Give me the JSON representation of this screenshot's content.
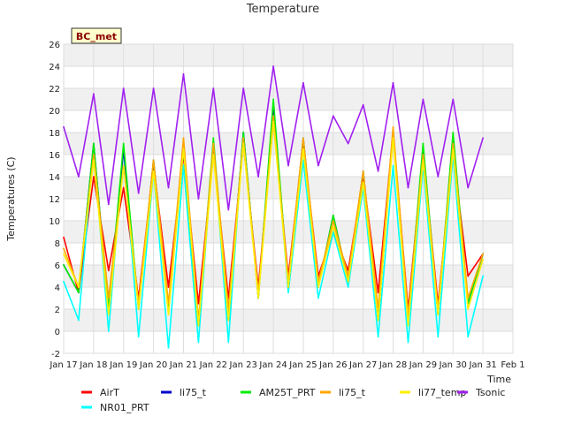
{
  "chart_data": {
    "type": "line",
    "title": "Temperature",
    "xlabel": "Time",
    "ylabel": "Temperatures (C)",
    "badge": "BC_met",
    "ylim": [
      -2,
      26
    ],
    "yticks": [
      -2,
      0,
      2,
      4,
      6,
      8,
      10,
      12,
      14,
      16,
      18,
      20,
      22,
      24,
      26
    ],
    "xlim": [
      17,
      32
    ],
    "xticks": [
      17,
      18,
      19,
      20,
      21,
      22,
      23,
      24,
      25,
      26,
      27,
      28,
      29,
      30,
      31,
      32
    ],
    "xticklabels": [
      "Jan 17",
      "Jan 18",
      "Jan 19",
      "Jan 20",
      "Jan 21",
      "Jan 22",
      "Jan 23",
      "Jan 24",
      "Jan 25",
      "Jan 26",
      "Jan 27",
      "Jan 28",
      "Jan 29",
      "Jan 30",
      "Jan 31",
      "Feb 1"
    ],
    "grid": true,
    "legend_position": "bottom",
    "x": [
      17.0,
      17.5,
      18.0,
      18.5,
      19.0,
      19.5,
      20.0,
      20.5,
      21.0,
      21.5,
      22.0,
      22.5,
      23.0,
      23.5,
      24.0,
      24.5,
      25.0,
      25.5,
      26.0,
      26.5,
      27.0,
      27.5,
      28.0,
      28.5,
      29.0,
      29.5,
      30.0,
      30.5,
      31.0
    ],
    "series": [
      {
        "name": "AirT",
        "color": "#ff0000",
        "values": [
          8.5,
          3.5,
          14,
          5.5,
          13,
          3,
          15,
          4,
          16,
          2.5,
          16,
          3,
          17,
          4,
          19,
          5,
          17,
          5,
          9,
          5.5,
          14,
          3.5,
          18,
          2,
          16,
          2.5,
          16,
          5,
          7
        ]
      },
      {
        "name": "NR01_PRT",
        "color": "#00ffff",
        "values": [
          4.5,
          1,
          16.5,
          0,
          16.5,
          -0.5,
          14.5,
          -1.5,
          15,
          -1,
          17,
          -1,
          18,
          3,
          20,
          3.5,
          15.5,
          3,
          9,
          4,
          13,
          -0.5,
          15,
          -1,
          15,
          -0.5,
          16,
          -0.5,
          5
        ]
      },
      {
        "name": "li75_t",
        "color": "#0000cc",
        "values": [
          6,
          3.5,
          17,
          2,
          16.5,
          2,
          15.5,
          2,
          16.5,
          0.5,
          17,
          1,
          18,
          3,
          20.5,
          4,
          17.5,
          4,
          10.5,
          4.5,
          14.5,
          1,
          18,
          1,
          16.5,
          1.5,
          17.5,
          2.5,
          7
        ]
      },
      {
        "name": "AM25T_PRT",
        "color": "#00ee00",
        "values": [
          6,
          3.5,
          17,
          2,
          17,
          2,
          15.5,
          2,
          16.5,
          0.5,
          17.5,
          1,
          18,
          3,
          21,
          4,
          17.5,
          4,
          10.5,
          4.5,
          14.5,
          1,
          18,
          1,
          17,
          1.5,
          18,
          2.5,
          7
        ]
      },
      {
        "name": "li75_t",
        "color": "#ffa500",
        "values": [
          7.5,
          4,
          16,
          3,
          15,
          2.5,
          15.5,
          2.5,
          17.5,
          1,
          17,
          2,
          17.5,
          3.5,
          19.5,
          4.5,
          17.5,
          4.5,
          10,
          5,
          14.5,
          2,
          18.5,
          1.5,
          16,
          2,
          17,
          3,
          7
        ]
      },
      {
        "name": "li77_temp",
        "color": "#ffee00",
        "values": [
          7,
          4,
          15.5,
          1.5,
          15,
          2,
          14.5,
          1.5,
          16.5,
          0.5,
          16,
          1,
          17,
          3,
          19,
          4,
          16.5,
          4,
          9.5,
          4.5,
          13.5,
          1,
          17.5,
          0.5,
          15.5,
          1.5,
          16.5,
          2,
          6.5
        ]
      },
      {
        "name": "Tsonic",
        "color": "#a020f0",
        "values": [
          18.5,
          14,
          21.5,
          11.5,
          22,
          12.5,
          22,
          13,
          23.3,
          12,
          22,
          11,
          22,
          14,
          24,
          15,
          22.5,
          15,
          19.5,
          17,
          20.5,
          14.5,
          22.5,
          13,
          21,
          14,
          21,
          13,
          17.5
        ]
      }
    ]
  }
}
